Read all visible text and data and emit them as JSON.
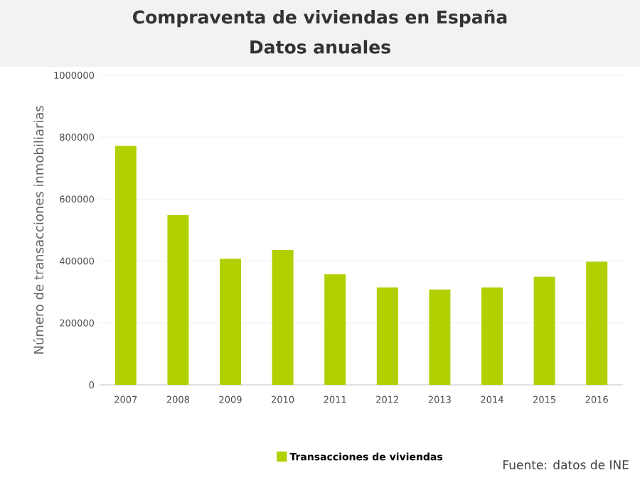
{
  "chart_data": {
    "type": "bar",
    "title": "Compraventa de viviendas en España",
    "subtitle": "Datos anuales",
    "categories": [
      "2007",
      "2008",
      "2009",
      "2010",
      "2011",
      "2012",
      "2013",
      "2014",
      "2015",
      "2016"
    ],
    "series": [
      {
        "name": "Transacciones de viviendas",
        "color": "#b2d000",
        "values": [
          772000,
          548000,
          407000,
          436000,
          357000,
          315000,
          308000,
          315000,
          349000,
          398000
        ]
      }
    ],
    "ylabel": "Número de transacciones inmobiliarias",
    "ylim": [
      0,
      1000000
    ],
    "yticks": [
      0,
      200000,
      400000,
      600000,
      800000,
      1000000
    ],
    "grid": "y",
    "legend": "bottom",
    "annotations": [
      "Fuente: datos de INE"
    ]
  }
}
